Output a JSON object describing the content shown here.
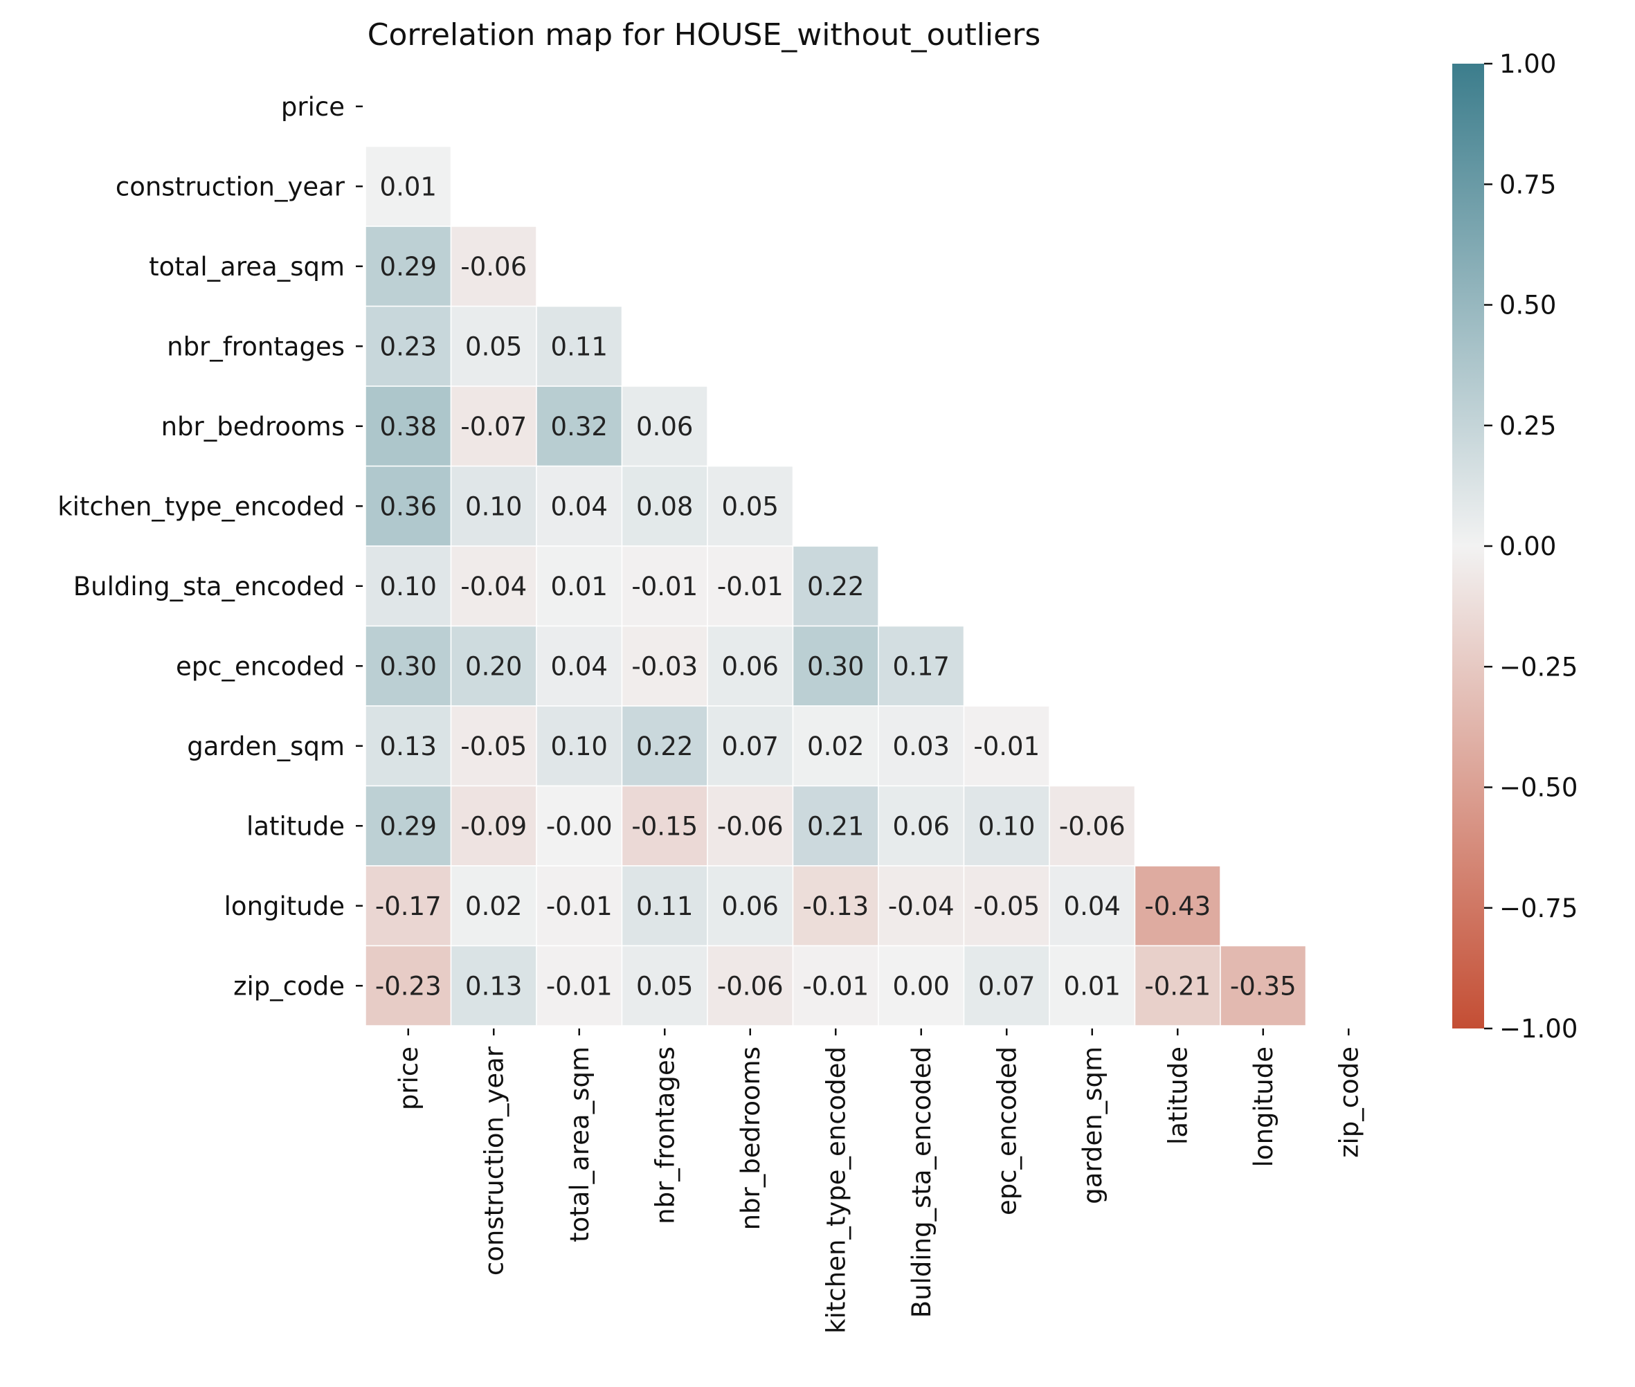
{
  "chart_data": {
    "type": "heatmap",
    "title": "Correlation map for HOUSE_without_outliers",
    "mask": "upper-triangle-including-diagonal",
    "variables": [
      "price",
      "construction_year",
      "total_area_sqm",
      "nbr_frontages",
      "nbr_bedrooms",
      "kitchen_type_encoded",
      "Bulding_sta_encoded",
      "epc_encoded",
      "garden_sqm",
      "latitude",
      "longitude",
      "zip_code"
    ],
    "rows": [
      {
        "label": "price",
        "values": []
      },
      {
        "label": "construction_year",
        "values": [
          0.01
        ]
      },
      {
        "label": "total_area_sqm",
        "values": [
          0.29,
          -0.06
        ]
      },
      {
        "label": "nbr_frontages",
        "values": [
          0.23,
          0.05,
          0.11
        ]
      },
      {
        "label": "nbr_bedrooms",
        "values": [
          0.38,
          -0.07,
          0.32,
          0.06
        ]
      },
      {
        "label": "kitchen_type_encoded",
        "values": [
          0.36,
          0.1,
          0.04,
          0.08,
          0.05
        ]
      },
      {
        "label": "Bulding_sta_encoded",
        "values": [
          0.1,
          -0.04,
          0.01,
          -0.01,
          -0.01,
          0.22
        ]
      },
      {
        "label": "epc_encoded",
        "values": [
          0.3,
          0.2,
          0.04,
          -0.03,
          0.06,
          0.3,
          0.17
        ]
      },
      {
        "label": "garden_sqm",
        "values": [
          0.13,
          -0.05,
          0.1,
          0.22,
          0.07,
          0.02,
          0.03,
          -0.01
        ]
      },
      {
        "label": "latitude",
        "values": [
          0.29,
          -0.09,
          -0.0,
          -0.15,
          -0.06,
          0.21,
          0.06,
          0.1,
          -0.06
        ]
      },
      {
        "label": "longitude",
        "values": [
          -0.17,
          0.02,
          -0.01,
          0.11,
          0.06,
          -0.13,
          -0.04,
          -0.05,
          0.04,
          -0.43
        ]
      },
      {
        "label": "zip_code",
        "values": [
          -0.23,
          0.13,
          -0.01,
          0.05,
          -0.06,
          -0.01,
          0.0,
          0.07,
          0.01,
          -0.21,
          -0.35
        ]
      }
    ],
    "cell_text": [
      [],
      [
        "0.01"
      ],
      [
        "0.29",
        "-0.06"
      ],
      [
        "0.23",
        "0.05",
        "0.11"
      ],
      [
        "0.38",
        "-0.07",
        "0.32",
        "0.06"
      ],
      [
        "0.36",
        "0.10",
        "0.04",
        "0.08",
        "0.05"
      ],
      [
        "0.10",
        "-0.04",
        "0.01",
        "-0.01",
        "-0.01",
        "0.22"
      ],
      [
        "0.30",
        "0.20",
        "0.04",
        "-0.03",
        "0.06",
        "0.30",
        "0.17"
      ],
      [
        "0.13",
        "-0.05",
        "0.10",
        "0.22",
        "0.07",
        "0.02",
        "0.03",
        "-0.01"
      ],
      [
        "0.29",
        "-0.09",
        "-0.00",
        "-0.15",
        "-0.06",
        "0.21",
        "0.06",
        "0.10",
        "-0.06"
      ],
      [
        "-0.17",
        "0.02",
        "-0.01",
        "0.11",
        "0.06",
        "-0.13",
        "-0.04",
        "-0.05",
        "0.04",
        "-0.43"
      ],
      [
        "-0.23",
        "0.13",
        "-0.01",
        "0.05",
        "-0.06",
        "-0.01",
        "0.00",
        "0.07",
        "0.01",
        "-0.21",
        "-0.35"
      ]
    ],
    "colorbar": {
      "range": [
        -1,
        1
      ],
      "ticks": [
        1.0,
        0.75,
        0.5,
        0.25,
        0.0,
        -0.25,
        -0.5,
        -0.75,
        -1.0
      ],
      "tick_labels": [
        "1.00",
        "0.75",
        "0.50",
        "0.25",
        "0.00",
        "−0.25",
        "−0.50",
        "−0.75",
        "−1.00"
      ],
      "color_neg": "#c44e34",
      "color_mid": "#f2f2f2",
      "color_pos": "#3c7d8c"
    },
    "grid": false,
    "legend": "colorbar-right"
  }
}
